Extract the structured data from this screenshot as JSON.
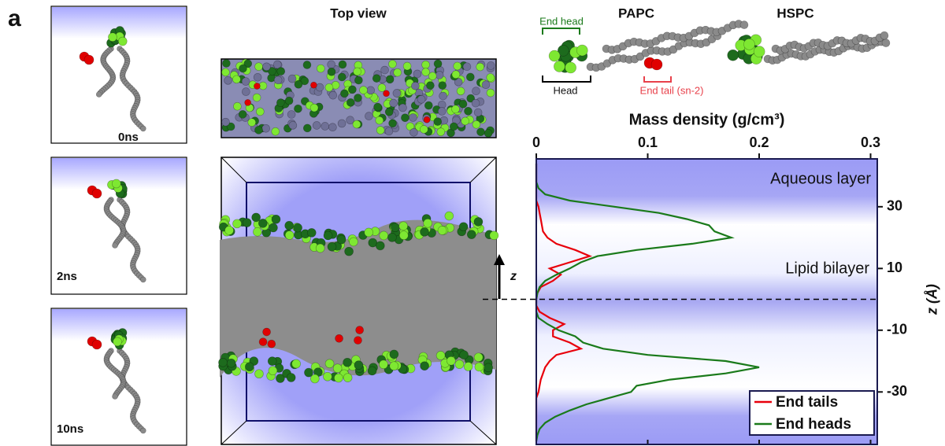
{
  "panel_label": "a",
  "snapshots": [
    "0ns",
    "2ns",
    "10ns"
  ],
  "top_view_title": "Top view",
  "molecules": {
    "papc": "PAPC",
    "hspc": "HSPC",
    "end_head": "End head",
    "head": "Head",
    "end_tail": "End tail (sn-2)"
  },
  "z_arrow": "z",
  "chart_data": {
    "type": "line",
    "title": "Mass density (g/cm³)",
    "y_label": "z (Å)",
    "annotations": [
      "Aqueous layer",
      "Lipid bilayer"
    ],
    "z": [
      44,
      42,
      40,
      38,
      36,
      34,
      32,
      30,
      28,
      26,
      24,
      22,
      20,
      18,
      16,
      14,
      12,
      10,
      8,
      6,
      4,
      2,
      0,
      -2,
      -4,
      -6,
      -8,
      -10,
      -12,
      -14,
      -16,
      -18,
      -20,
      -22,
      -24,
      -26,
      -28,
      -30,
      -32,
      -34,
      -36,
      -38,
      -40,
      -42,
      -44,
      -46
    ],
    "series": [
      {
        "name": "End tails",
        "color": "#e8000b",
        "values": [
          0,
          0,
          0,
          0,
          0,
          0,
          0,
          0.002,
          0.003,
          0.004,
          0.005,
          0.006,
          0.01,
          0.018,
          0.035,
          0.048,
          0.03,
          0.012,
          0.022,
          0.015,
          0.004,
          0.001,
          0,
          0,
          0.003,
          0.012,
          0.025,
          0.015,
          0.015,
          0.03,
          0.04,
          0.018,
          0.012,
          0.008,
          0.006,
          0.004,
          0.003,
          0.002,
          0,
          0,
          0,
          0,
          0,
          0,
          0,
          0
        ]
      },
      {
        "name": "End heads",
        "color": "#1a7a1a",
        "values": [
          0,
          0,
          0,
          0,
          0.002,
          0.008,
          0.03,
          0.07,
          0.11,
          0.135,
          0.155,
          0.16,
          0.175,
          0.14,
          0.09,
          0.055,
          0.04,
          0.03,
          0.018,
          0.008,
          0.003,
          0.001,
          0,
          0,
          0,
          0.002,
          0.01,
          0.02,
          0.035,
          0.042,
          0.06,
          0.1,
          0.17,
          0.2,
          0.17,
          0.12,
          0.09,
          0.085,
          0.065,
          0.045,
          0.03,
          0.017,
          0.008,
          0.003,
          0.001,
          0
        ]
      }
    ],
    "xlim": [
      0,
      0.306
    ],
    "xticks": [
      0,
      0.1,
      0.2,
      0.3
    ],
    "ylim": [
      -47,
      45.5
    ],
    "yticks": [
      30,
      10,
      -10,
      -30
    ],
    "legend": "lower right"
  }
}
